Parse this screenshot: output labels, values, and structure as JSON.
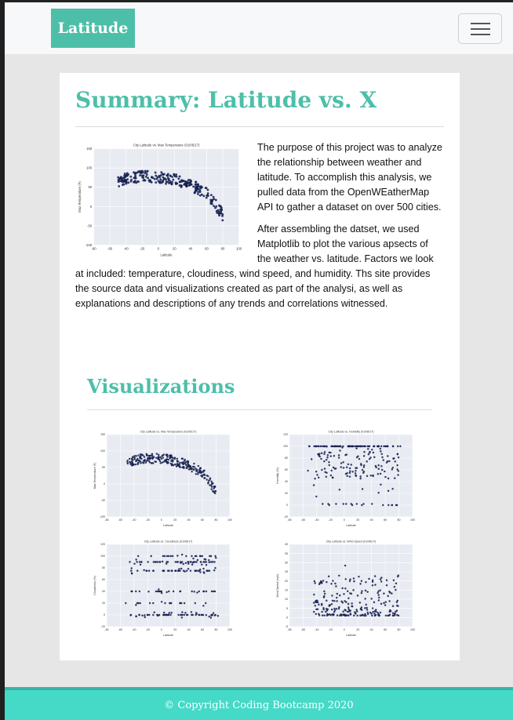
{
  "navbar": {
    "brand": "Latitude"
  },
  "summary": {
    "title": "Summary: Latitude vs. X",
    "paragraph1": "The purpose of this project was to analyze the relationship between weather and latitude. To accomplish this analysis, we pulled data from the OpenWEatherMap API to gather a dataset on over 500 cities.",
    "paragraph2": "After assembling the datset, we used Matplotlib to plot the various apsects of the weather vs. latitude. Factors we look at included: temperature, cloudiness, wind speed, and humidity. Ths site provides the source data and visualizations created as part of the analysi, as well as explanations and descriptions of any trends and correlations witnessed."
  },
  "visualizations": {
    "title": "Visualizations"
  },
  "footer": {
    "text": "© Copyright Coding Bootcamp 2020"
  },
  "colors": {
    "accent": "#4dbfa9",
    "footer": "#45d9c8",
    "points": "#1a2a6c"
  },
  "chart_data": [
    {
      "type": "scatter",
      "title": "City Latitude vs. Max Temperature (01/05/17)",
      "xlabel": "Latitude",
      "ylabel": "Max Temperature (F)",
      "xlim": [
        -80,
        100
      ],
      "ylim": [
        -100,
        150
      ],
      "xticks": [
        "-80",
        "-60",
        "-40",
        "-20",
        "0",
        "20",
        "40",
        "60",
        "80",
        "100"
      ],
      "yticks": [
        "-100",
        "-50",
        "0",
        "50",
        "100",
        "150"
      ],
      "pattern": "temperature"
    },
    {
      "type": "scatter",
      "title": "City Latitude vs. Humidity (01/08/17)",
      "xlabel": "Latitude",
      "ylabel": "Humidity (%)",
      "xlim": [
        -80,
        100
      ],
      "ylim": [
        -20,
        120
      ],
      "xticks": [
        "-80",
        "-60",
        "-40",
        "-20",
        "0",
        "20",
        "40",
        "60",
        "80",
        "100"
      ],
      "yticks": [
        "-20",
        "0",
        "20",
        "40",
        "60",
        "80",
        "100",
        "120"
      ],
      "pattern": "humidity"
    },
    {
      "type": "scatter",
      "title": "City Latitude vs. Cloudiness (01/08/17)",
      "xlabel": "Latitude",
      "ylabel": "Cloudiness (%)",
      "xlim": [
        -80,
        100
      ],
      "ylim": [
        -20,
        120
      ],
      "xticks": [
        "-80",
        "-60",
        "-40",
        "-20",
        "0",
        "20",
        "40",
        "60",
        "80",
        "100"
      ],
      "yticks": [
        "-20",
        "0",
        "20",
        "40",
        "60",
        "80",
        "100",
        "120"
      ],
      "pattern": "cloudiness"
    },
    {
      "type": "scatter",
      "title": "City Latitude vs. Wind Speed (01/08/17)",
      "xlabel": "Latitude",
      "ylabel": "Wind Speed (mph)",
      "xlim": [
        -80,
        100
      ],
      "ylim": [
        -5,
        40
      ],
      "xticks": [
        "-80",
        "-60",
        "-40",
        "-20",
        "0",
        "20",
        "40",
        "60",
        "80",
        "100"
      ],
      "yticks": [
        "-5",
        "0",
        "5",
        "10",
        "15",
        "20",
        "25",
        "30",
        "35",
        "40"
      ],
      "pattern": "wind"
    }
  ]
}
